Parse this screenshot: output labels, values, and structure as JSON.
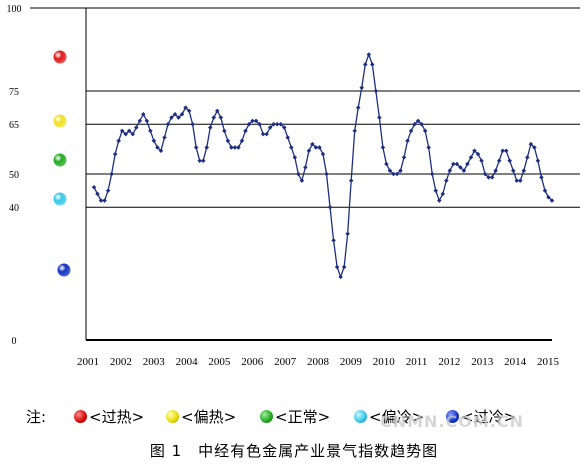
{
  "chart_data": {
    "type": "line",
    "title": "",
    "xlabel": "",
    "ylabel": "",
    "ylim": [
      0,
      100
    ],
    "y_ticks": [
      "0",
      "40",
      "50",
      "65",
      "75",
      "100"
    ],
    "y_tick_values": [
      0,
      40,
      50,
      65,
      75,
      100
    ],
    "x_ticks": [
      "2001",
      "2002",
      "2003",
      "2004",
      "2005",
      "2006",
      "2007",
      "2008",
      "2009",
      "2010",
      "2011",
      "2012",
      "2013",
      "2014",
      "2015"
    ],
    "series": [
      {
        "values": [
          46,
          44,
          42,
          42,
          45,
          50,
          56,
          60,
          63,
          62,
          63,
          62,
          64,
          66,
          68,
          66,
          63,
          60,
          58,
          57,
          61,
          65,
          67,
          68,
          67,
          68,
          70,
          69,
          65,
          58,
          54,
          54,
          58,
          64,
          67,
          69,
          67,
          63,
          60,
          58,
          58,
          58,
          60,
          63,
          65,
          66,
          66,
          65,
          62,
          62,
          64,
          65,
          65,
          65,
          64,
          61,
          58,
          55,
          50,
          48,
          52,
          57,
          59,
          58,
          58,
          56,
          50,
          40,
          30,
          22,
          19,
          22,
          32,
          48,
          63,
          70,
          76,
          83,
          86,
          83,
          75,
          67,
          58,
          53,
          51,
          50,
          50,
          51,
          55,
          60,
          63,
          65,
          66,
          65,
          63,
          58,
          50,
          45,
          42,
          44,
          48,
          51,
          53,
          53,
          52,
          51,
          53,
          55,
          57,
          56,
          54,
          50,
          49,
          49,
          51,
          54,
          57,
          57,
          54,
          51,
          48,
          48,
          51,
          55,
          59,
          58,
          54,
          49,
          45,
          43,
          42
        ]
      }
    ],
    "colors": {
      "line": "#1f2f7f",
      "grid": "#000000"
    },
    "levels": [
      {
        "label": "过热",
        "color": "#e01818"
      },
      {
        "label": "偏热",
        "color": "#f0e020"
      },
      {
        "label": "正常",
        "color": "#22aa22"
      },
      {
        "label": "偏冷",
        "color": "#38c8e8"
      },
      {
        "label": "过冷",
        "color": "#1030c0"
      }
    ]
  },
  "legend": {
    "prefix": "注:",
    "items": [
      "<过热>",
      "<偏热>",
      "<正常>",
      "<偏冷>",
      "<过冷>"
    ]
  },
  "caption": "图 1　中经有色金属产业景气指数趋势图",
  "watermark": "CNMN.COM.CN"
}
